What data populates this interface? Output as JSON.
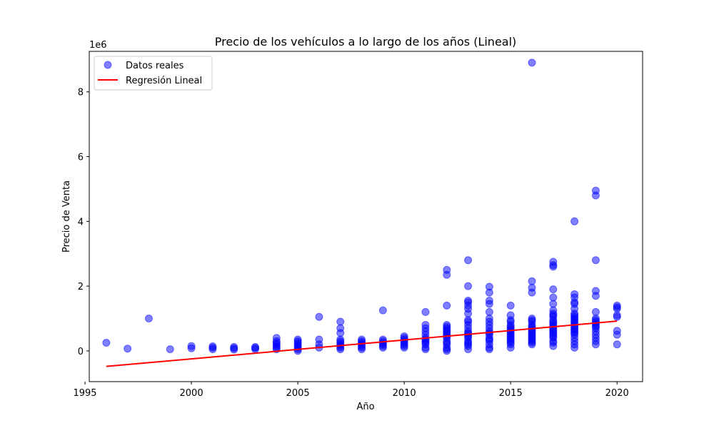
{
  "chart_data": {
    "type": "scatter",
    "title": "Precio de los vehículos a lo largo de los años (Lineal)",
    "xlabel": "Año",
    "ylabel": "Precio de Venta",
    "y_offset_text": "1e6",
    "y_scale": 1000000,
    "xlim": [
      1995.2,
      2021.2
    ],
    "ylim": [
      -0.95,
      9.25
    ],
    "xticks": [
      1995,
      2000,
      2005,
      2010,
      2015,
      2020
    ],
    "yticks": [
      0,
      2,
      4,
      6,
      8
    ],
    "grid": false,
    "legend_position": "top-left",
    "legend": [
      {
        "label": "Datos reales",
        "kind": "marker"
      },
      {
        "label": "Regresión Lineal",
        "kind": "line"
      }
    ],
    "colors": {
      "points": "#0000ff",
      "line": "#ff0000"
    },
    "series": [
      {
        "name": "Datos reales",
        "kind": "scatter",
        "points": [
          [
            1996,
            0.25
          ],
          [
            1997,
            0.07
          ],
          [
            1998,
            1.0
          ],
          [
            1999,
            0.05
          ],
          [
            2000,
            0.08
          ],
          [
            2000,
            0.15
          ],
          [
            2001,
            0.05
          ],
          [
            2001,
            0.1
          ],
          [
            2001,
            0.14
          ],
          [
            2002,
            0.04
          ],
          [
            2002,
            0.08
          ],
          [
            2002,
            0.12
          ],
          [
            2003,
            0.05
          ],
          [
            2003,
            0.09
          ],
          [
            2003,
            0.12
          ],
          [
            2004,
            0.05
          ],
          [
            2004,
            0.1
          ],
          [
            2004,
            0.15
          ],
          [
            2004,
            0.2
          ],
          [
            2004,
            0.25
          ],
          [
            2004,
            0.3
          ],
          [
            2004,
            0.4
          ],
          [
            2005,
            0.0
          ],
          [
            2005,
            0.05
          ],
          [
            2005,
            0.1
          ],
          [
            2005,
            0.15
          ],
          [
            2005,
            0.2
          ],
          [
            2005,
            0.25
          ],
          [
            2005,
            0.3
          ],
          [
            2005,
            0.35
          ],
          [
            2006,
            0.1
          ],
          [
            2006,
            0.2
          ],
          [
            2006,
            0.35
          ],
          [
            2006,
            1.05
          ],
          [
            2007,
            0.05
          ],
          [
            2007,
            0.1
          ],
          [
            2007,
            0.15
          ],
          [
            2007,
            0.2
          ],
          [
            2007,
            0.25
          ],
          [
            2007,
            0.3
          ],
          [
            2007,
            0.35
          ],
          [
            2007,
            0.55
          ],
          [
            2007,
            0.7
          ],
          [
            2007,
            0.9
          ],
          [
            2008,
            0.05
          ],
          [
            2008,
            0.1
          ],
          [
            2008,
            0.15
          ],
          [
            2008,
            0.2
          ],
          [
            2008,
            0.25
          ],
          [
            2008,
            0.3
          ],
          [
            2008,
            0.35
          ],
          [
            2009,
            0.1
          ],
          [
            2009,
            0.15
          ],
          [
            2009,
            0.2
          ],
          [
            2009,
            0.25
          ],
          [
            2009,
            0.3
          ],
          [
            2009,
            0.35
          ],
          [
            2009,
            1.25
          ],
          [
            2010,
            0.1
          ],
          [
            2010,
            0.15
          ],
          [
            2010,
            0.2
          ],
          [
            2010,
            0.25
          ],
          [
            2010,
            0.3
          ],
          [
            2010,
            0.35
          ],
          [
            2010,
            0.4
          ],
          [
            2010,
            0.45
          ],
          [
            2011,
            0.05
          ],
          [
            2011,
            0.1
          ],
          [
            2011,
            0.2
          ],
          [
            2011,
            0.25
          ],
          [
            2011,
            0.3
          ],
          [
            2011,
            0.35
          ],
          [
            2011,
            0.4
          ],
          [
            2011,
            0.5
          ],
          [
            2011,
            0.6
          ],
          [
            2011,
            0.7
          ],
          [
            2011,
            0.8
          ],
          [
            2011,
            1.2
          ],
          [
            2012,
            0.0
          ],
          [
            2012,
            0.05
          ],
          [
            2012,
            0.1
          ],
          [
            2012,
            0.2
          ],
          [
            2012,
            0.25
          ],
          [
            2012,
            0.3
          ],
          [
            2012,
            0.4
          ],
          [
            2012,
            0.45
          ],
          [
            2012,
            0.5
          ],
          [
            2012,
            0.55
          ],
          [
            2012,
            0.6
          ],
          [
            2012,
            0.65
          ],
          [
            2012,
            0.7
          ],
          [
            2012,
            0.75
          ],
          [
            2012,
            0.8
          ],
          [
            2012,
            1.4
          ],
          [
            2012,
            2.35
          ],
          [
            2012,
            2.5
          ],
          [
            2013,
            0.05
          ],
          [
            2013,
            0.15
          ],
          [
            2013,
            0.2
          ],
          [
            2013,
            0.25
          ],
          [
            2013,
            0.3
          ],
          [
            2013,
            0.4
          ],
          [
            2013,
            0.45
          ],
          [
            2013,
            0.5
          ],
          [
            2013,
            0.55
          ],
          [
            2013,
            0.6
          ],
          [
            2013,
            0.7
          ],
          [
            2013,
            0.8
          ],
          [
            2013,
            0.9
          ],
          [
            2013,
            0.95
          ],
          [
            2013,
            1.15
          ],
          [
            2013,
            1.3
          ],
          [
            2013,
            1.4
          ],
          [
            2013,
            1.5
          ],
          [
            2013,
            1.55
          ],
          [
            2013,
            2.0
          ],
          [
            2013,
            2.8
          ],
          [
            2014,
            0.05
          ],
          [
            2014,
            0.1
          ],
          [
            2014,
            0.2
          ],
          [
            2014,
            0.3
          ],
          [
            2014,
            0.35
          ],
          [
            2014,
            0.4
          ],
          [
            2014,
            0.5
          ],
          [
            2014,
            0.55
          ],
          [
            2014,
            0.6
          ],
          [
            2014,
            0.7
          ],
          [
            2014,
            0.8
          ],
          [
            2014,
            0.9
          ],
          [
            2014,
            1.0
          ],
          [
            2014,
            1.2
          ],
          [
            2014,
            1.45
          ],
          [
            2014,
            1.55
          ],
          [
            2014,
            1.8
          ],
          [
            2014,
            1.98
          ],
          [
            2015,
            0.1
          ],
          [
            2015,
            0.2
          ],
          [
            2015,
            0.25
          ],
          [
            2015,
            0.3
          ],
          [
            2015,
            0.35
          ],
          [
            2015,
            0.4
          ],
          [
            2015,
            0.45
          ],
          [
            2015,
            0.5
          ],
          [
            2015,
            0.55
          ],
          [
            2015,
            0.6
          ],
          [
            2015,
            0.65
          ],
          [
            2015,
            0.7
          ],
          [
            2015,
            0.75
          ],
          [
            2015,
            0.8
          ],
          [
            2015,
            0.9
          ],
          [
            2015,
            0.95
          ],
          [
            2015,
            1.1
          ],
          [
            2015,
            1.4
          ],
          [
            2016,
            0.2
          ],
          [
            2016,
            0.25
          ],
          [
            2016,
            0.3
          ],
          [
            2016,
            0.35
          ],
          [
            2016,
            0.4
          ],
          [
            2016,
            0.45
          ],
          [
            2016,
            0.5
          ],
          [
            2016,
            0.55
          ],
          [
            2016,
            0.6
          ],
          [
            2016,
            0.65
          ],
          [
            2016,
            0.7
          ],
          [
            2016,
            0.75
          ],
          [
            2016,
            0.8
          ],
          [
            2016,
            0.9
          ],
          [
            2016,
            0.95
          ],
          [
            2016,
            1.0
          ],
          [
            2016,
            1.8
          ],
          [
            2016,
            1.95
          ],
          [
            2016,
            2.15
          ],
          [
            2016,
            8.9
          ],
          [
            2017,
            0.15
          ],
          [
            2017,
            0.25
          ],
          [
            2017,
            0.3
          ],
          [
            2017,
            0.4
          ],
          [
            2017,
            0.45
          ],
          [
            2017,
            0.5
          ],
          [
            2017,
            0.55
          ],
          [
            2017,
            0.6
          ],
          [
            2017,
            0.65
          ],
          [
            2017,
            0.7
          ],
          [
            2017,
            0.75
          ],
          [
            2017,
            0.8
          ],
          [
            2017,
            0.85
          ],
          [
            2017,
            0.9
          ],
          [
            2017,
            0.95
          ],
          [
            2017,
            1.05
          ],
          [
            2017,
            1.1
          ],
          [
            2017,
            1.15
          ],
          [
            2017,
            1.25
          ],
          [
            2017,
            1.45
          ],
          [
            2017,
            1.65
          ],
          [
            2017,
            1.9
          ],
          [
            2017,
            2.6
          ],
          [
            2017,
            2.65
          ],
          [
            2017,
            2.75
          ],
          [
            2018,
            0.1
          ],
          [
            2018,
            0.2
          ],
          [
            2018,
            0.3
          ],
          [
            2018,
            0.4
          ],
          [
            2018,
            0.5
          ],
          [
            2018,
            0.55
          ],
          [
            2018,
            0.6
          ],
          [
            2018,
            0.65
          ],
          [
            2018,
            0.7
          ],
          [
            2018,
            0.75
          ],
          [
            2018,
            0.8
          ],
          [
            2018,
            0.85
          ],
          [
            2018,
            0.9
          ],
          [
            2018,
            0.95
          ],
          [
            2018,
            1.0
          ],
          [
            2018,
            1.05
          ],
          [
            2018,
            1.1
          ],
          [
            2018,
            1.15
          ],
          [
            2018,
            1.3
          ],
          [
            2018,
            1.45
          ],
          [
            2018,
            1.5
          ],
          [
            2018,
            1.65
          ],
          [
            2018,
            1.75
          ],
          [
            2018,
            4.0
          ],
          [
            2019,
            0.2
          ],
          [
            2019,
            0.3
          ],
          [
            2019,
            0.4
          ],
          [
            2019,
            0.5
          ],
          [
            2019,
            0.6
          ],
          [
            2019,
            0.7
          ],
          [
            2019,
            0.75
          ],
          [
            2019,
            0.8
          ],
          [
            2019,
            0.85
          ],
          [
            2019,
            0.9
          ],
          [
            2019,
            0.95
          ],
          [
            2019,
            1.0
          ],
          [
            2019,
            1.2
          ],
          [
            2019,
            1.7
          ],
          [
            2019,
            1.85
          ],
          [
            2019,
            2.8
          ],
          [
            2019,
            4.8
          ],
          [
            2019,
            4.95
          ],
          [
            2020,
            0.2
          ],
          [
            2020,
            0.5
          ],
          [
            2020,
            0.62
          ],
          [
            2020,
            1.05
          ],
          [
            2020,
            1.1
          ],
          [
            2020,
            1.3
          ],
          [
            2020,
            1.35
          ],
          [
            2020,
            1.4
          ]
        ]
      },
      {
        "name": "Regresión Lineal",
        "kind": "line",
        "x": [
          1996,
          2020
        ],
        "y": [
          -0.48,
          0.92
        ]
      }
    ]
  }
}
